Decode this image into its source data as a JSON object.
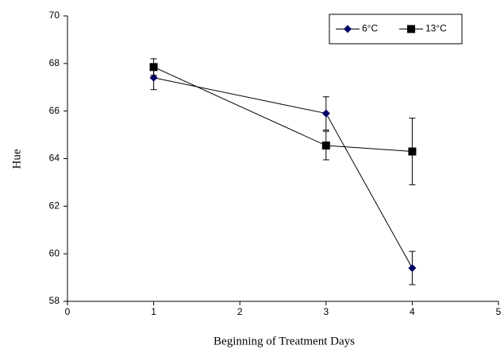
{
  "chart_data": {
    "type": "line",
    "x_label": "Beginning  of Treatment  Days",
    "y_label": "Hue",
    "xlim": [
      0,
      5
    ],
    "xticks": [
      0,
      1,
      2,
      3,
      4,
      5
    ],
    "ylim": [
      58,
      70
    ],
    "yticks": [
      58,
      60,
      62,
      64,
      66,
      68,
      70
    ],
    "grid": false,
    "legend": "top-right",
    "series": [
      {
        "name": "6°C",
        "color": "#000066",
        "marker": "diamond",
        "x": [
          1,
          3,
          4
        ],
        "values": [
          67.4,
          65.9,
          59.4
        ],
        "errors": [
          0.5,
          0.7,
          0.7
        ]
      },
      {
        "name": "13°C",
        "color": "#000000",
        "marker": "square",
        "x": [
          1,
          3,
          4
        ],
        "values": [
          67.85,
          64.55,
          64.3
        ],
        "errors": [
          0.35,
          0.6,
          1.4
        ]
      }
    ]
  }
}
